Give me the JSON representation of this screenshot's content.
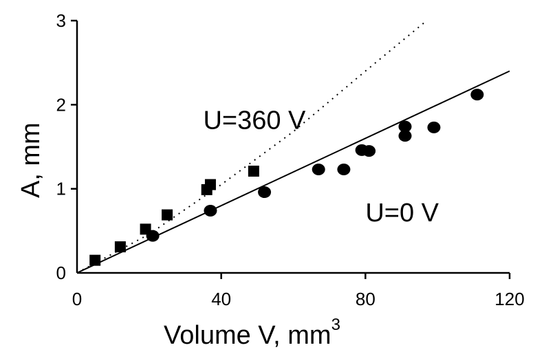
{
  "chart_data": {
    "type": "scatter",
    "xlabel": "Volume V, mm",
    "xlabel_superscript": "3",
    "ylabel": "A, mm",
    "xlim": [
      0,
      120
    ],
    "ylim": [
      0,
      3
    ],
    "xticks": [
      0,
      40,
      80,
      120
    ],
    "yticks": [
      0,
      1,
      2,
      3
    ],
    "xtick_labels": [
      "0",
      "40",
      "80",
      "120"
    ],
    "ytick_labels": [
      "0",
      "1",
      "2",
      "3"
    ],
    "grid": false,
    "series": [
      {
        "marker": "square",
        "points": [
          [
            5,
            0.15
          ],
          [
            12,
            0.31
          ],
          [
            19,
            0.52
          ],
          [
            25,
            0.69
          ],
          [
            36,
            0.99
          ],
          [
            37,
            1.05
          ],
          [
            49,
            1.21
          ]
        ]
      },
      {
        "marker": "circle",
        "points": [
          [
            21,
            0.44
          ],
          [
            37,
            0.74
          ],
          [
            52,
            0.96
          ],
          [
            67,
            1.23
          ],
          [
            74,
            1.23
          ],
          [
            79,
            1.46
          ],
          [
            81,
            1.45
          ],
          [
            91,
            1.74
          ],
          [
            91,
            1.63
          ],
          [
            99,
            1.73
          ],
          [
            111,
            2.12
          ]
        ]
      }
    ],
    "lines": [
      {
        "style": "dotted",
        "points": [
          [
            0,
            0
          ],
          [
            20,
            0.46
          ],
          [
            40,
            1.05
          ],
          [
            60,
            1.68
          ],
          [
            80,
            2.4
          ],
          [
            97,
            3.0
          ]
        ]
      },
      {
        "style": "solid",
        "points": [
          [
            0,
            0
          ],
          [
            120,
            2.4
          ]
        ]
      }
    ],
    "annotations": [
      {
        "text": "U=360 V",
        "at": [
          35,
          1.82
        ]
      },
      {
        "text": "U=0 V",
        "at": [
          80,
          0.72
        ]
      }
    ]
  }
}
